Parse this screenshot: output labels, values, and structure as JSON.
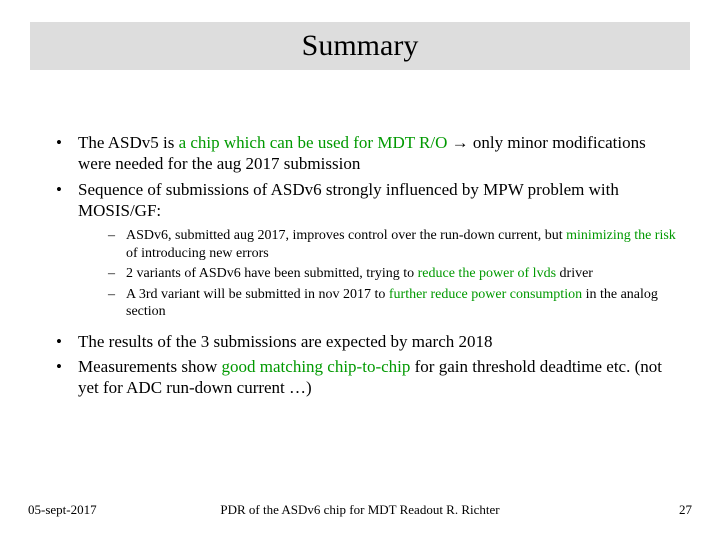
{
  "title": "Summary",
  "bullets": {
    "b1": {
      "pre": "The ASDv5 is ",
      "g1": "a chip which can be used for MDT R/O",
      "post": " → only minor modifications were needed for the aug 2017 submission"
    },
    "b2": {
      "text": "Sequence of submissions of ASDv6 strongly influenced by MPW problem with MOSIS/GF:",
      "sub": {
        "s1": {
          "pre": "ASDv6, submitted aug 2017, improves control over the run-down current, but ",
          "g": "minimizing the risk",
          "post": " of introducing new errors"
        },
        "s2": {
          "pre": "2 variants of ASDv6 have been submitted, trying to ",
          "g": "reduce the power of lvds",
          "post": " driver"
        },
        "s3": {
          "pre": "A 3rd variant will be submitted in nov 2017 to ",
          "g": "further reduce power consumption",
          "post": " in the analog section"
        }
      }
    },
    "b3": {
      "text": "The results of the 3 submissions are expected by march 2018"
    },
    "b4": {
      "pre": "Measurements show ",
      "g": "good matching chip-to-chip",
      "post": " for gain threshold deadtime etc. (not yet for ADC run-down current …)"
    }
  },
  "footer": {
    "date": "05-sept-2017",
    "center": "PDR of the ASDv6 chip for MDT Readout      R. Richter",
    "page": "27"
  },
  "colors": {
    "title_band_bg": "#dddddd",
    "green": "#009900",
    "text": "#000000",
    "background": "#ffffff"
  },
  "fonts": {
    "title_pt": 30,
    "body_pt": 17,
    "sub_pt": 14,
    "footer_pt": 13,
    "family": "Times New Roman"
  }
}
